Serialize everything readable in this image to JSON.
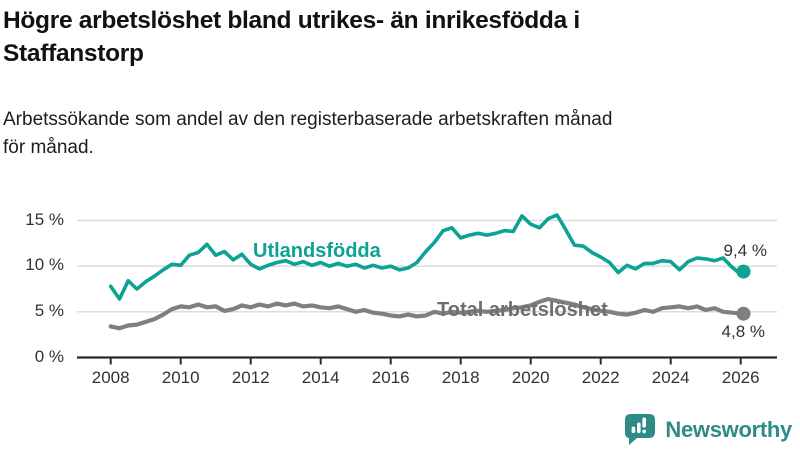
{
  "header": {
    "title": "Högre arbetslöshet bland utrikes- än inrikesfödda i\nStaffanstorp",
    "subtitle": "Arbetssökande som andel av den registerbaserade arbetskraften månad\nför månad."
  },
  "chart_data": {
    "type": "line",
    "title": "Högre arbetslöshet bland utrikes- än inrikesfödda i Staffanstorp",
    "subtitle": "Arbetssökande som andel av den registerbaserade arbetskraften månad för månad.",
    "unit": "%",
    "grid": "horizontal",
    "legend_position": "inline-labels-on-lines",
    "xlim": [
      2007.05,
      2027.05
    ],
    "ylim": [
      0,
      16
    ],
    "x_ticks": [
      {
        "value": 2008,
        "label": "2008"
      },
      {
        "value": 2010,
        "label": "2010"
      },
      {
        "value": 2012,
        "label": "2012"
      },
      {
        "value": 2014,
        "label": "2014"
      },
      {
        "value": 2016,
        "label": "2016"
      },
      {
        "value": 2018,
        "label": "2018"
      },
      {
        "value": 2020,
        "label": "2020"
      },
      {
        "value": 2022,
        "label": "2022"
      },
      {
        "value": 2024,
        "label": "2024"
      },
      {
        "value": 2026,
        "label": "2026"
      }
    ],
    "y_ticks": [
      {
        "value": 0,
        "label": "0 %"
      },
      {
        "value": 5,
        "label": "5 %"
      },
      {
        "value": 10,
        "label": "10 %"
      },
      {
        "value": 15,
        "label": "15 %"
      }
    ],
    "series": [
      {
        "name": "Utlandsfödda",
        "color": "#0ca294",
        "end_label": "9,4 %",
        "end_value": 9.4,
        "points": [
          [
            2008.0,
            7.8
          ],
          [
            2008.25,
            6.4
          ],
          [
            2008.5,
            8.4
          ],
          [
            2008.75,
            7.5
          ],
          [
            2009.0,
            8.3
          ],
          [
            2009.25,
            8.9
          ],
          [
            2009.5,
            9.6
          ],
          [
            2009.75,
            10.2
          ],
          [
            2010.0,
            10.1
          ],
          [
            2010.25,
            11.2
          ],
          [
            2010.5,
            11.5
          ],
          [
            2010.75,
            12.4
          ],
          [
            2011.0,
            11.2
          ],
          [
            2011.25,
            11.6
          ],
          [
            2011.5,
            10.7
          ],
          [
            2011.75,
            11.3
          ],
          [
            2012.0,
            10.2
          ],
          [
            2012.25,
            9.7
          ],
          [
            2012.5,
            10.1
          ],
          [
            2012.75,
            10.4
          ],
          [
            2013.0,
            10.6
          ],
          [
            2013.25,
            10.2
          ],
          [
            2013.5,
            10.5
          ],
          [
            2013.75,
            10.1
          ],
          [
            2014.0,
            10.4
          ],
          [
            2014.25,
            10.0
          ],
          [
            2014.5,
            10.3
          ],
          [
            2014.75,
            10.0
          ],
          [
            2015.0,
            10.2
          ],
          [
            2015.25,
            9.8
          ],
          [
            2015.5,
            10.1
          ],
          [
            2015.75,
            9.8
          ],
          [
            2016.0,
            10.0
          ],
          [
            2016.25,
            9.6
          ],
          [
            2016.5,
            9.8
          ],
          [
            2016.75,
            10.4
          ],
          [
            2017.0,
            11.6
          ],
          [
            2017.25,
            12.6
          ],
          [
            2017.5,
            13.9
          ],
          [
            2017.75,
            14.2
          ],
          [
            2018.0,
            13.1
          ],
          [
            2018.25,
            13.4
          ],
          [
            2018.5,
            13.6
          ],
          [
            2018.75,
            13.4
          ],
          [
            2019.0,
            13.6
          ],
          [
            2019.25,
            13.9
          ],
          [
            2019.5,
            13.8
          ],
          [
            2019.75,
            15.5
          ],
          [
            2020.0,
            14.6
          ],
          [
            2020.25,
            14.2
          ],
          [
            2020.5,
            15.2
          ],
          [
            2020.75,
            15.6
          ],
          [
            2021.0,
            14.0
          ],
          [
            2021.25,
            12.3
          ],
          [
            2021.5,
            12.2
          ],
          [
            2021.75,
            11.5
          ],
          [
            2022.0,
            11.0
          ],
          [
            2022.25,
            10.4
          ],
          [
            2022.5,
            9.3
          ],
          [
            2022.75,
            10.1
          ],
          [
            2023.0,
            9.7
          ],
          [
            2023.25,
            10.3
          ],
          [
            2023.5,
            10.3
          ],
          [
            2023.75,
            10.6
          ],
          [
            2024.0,
            10.5
          ],
          [
            2024.25,
            9.6
          ],
          [
            2024.5,
            10.5
          ],
          [
            2024.75,
            10.9
          ],
          [
            2025.0,
            10.8
          ],
          [
            2025.25,
            10.6
          ],
          [
            2025.5,
            10.9
          ],
          [
            2025.75,
            9.9
          ],
          [
            2026.0,
            9.1
          ],
          [
            2026.08,
            9.4
          ]
        ]
      },
      {
        "name": "Total arbetslöshet",
        "color": "#7f7f7f",
        "label_color": "#6f6f6f",
        "end_label": "4,8 %",
        "end_value": 4.8,
        "points": [
          [
            2008.0,
            3.4
          ],
          [
            2008.25,
            3.2
          ],
          [
            2008.5,
            3.5
          ],
          [
            2008.75,
            3.6
          ],
          [
            2009.0,
            3.9
          ],
          [
            2009.25,
            4.2
          ],
          [
            2009.5,
            4.7
          ],
          [
            2009.75,
            5.3
          ],
          [
            2010.0,
            5.6
          ],
          [
            2010.25,
            5.5
          ],
          [
            2010.5,
            5.8
          ],
          [
            2010.75,
            5.5
          ],
          [
            2011.0,
            5.6
          ],
          [
            2011.25,
            5.1
          ],
          [
            2011.5,
            5.3
          ],
          [
            2011.75,
            5.7
          ],
          [
            2012.0,
            5.5
          ],
          [
            2012.25,
            5.8
          ],
          [
            2012.5,
            5.6
          ],
          [
            2012.75,
            5.9
          ],
          [
            2013.0,
            5.7
          ],
          [
            2013.25,
            5.9
          ],
          [
            2013.5,
            5.6
          ],
          [
            2013.75,
            5.7
          ],
          [
            2014.0,
            5.5
          ],
          [
            2014.25,
            5.4
          ],
          [
            2014.5,
            5.6
          ],
          [
            2014.75,
            5.3
          ],
          [
            2015.0,
            5.0
          ],
          [
            2015.25,
            5.2
          ],
          [
            2015.5,
            4.9
          ],
          [
            2015.75,
            4.8
          ],
          [
            2016.0,
            4.6
          ],
          [
            2016.25,
            4.5
          ],
          [
            2016.5,
            4.7
          ],
          [
            2016.75,
            4.5
          ],
          [
            2017.0,
            4.6
          ],
          [
            2017.25,
            5.0
          ],
          [
            2017.5,
            4.8
          ],
          [
            2017.75,
            5.0
          ],
          [
            2018.0,
            4.9
          ],
          [
            2018.25,
            5.0
          ],
          [
            2018.5,
            5.1
          ],
          [
            2018.75,
            5.0
          ],
          [
            2019.0,
            5.1
          ],
          [
            2019.25,
            5.2
          ],
          [
            2019.5,
            5.4
          ],
          [
            2019.75,
            5.5
          ],
          [
            2020.0,
            5.7
          ],
          [
            2020.25,
            6.1
          ],
          [
            2020.5,
            6.4
          ],
          [
            2020.75,
            6.2
          ],
          [
            2021.0,
            6.0
          ],
          [
            2021.25,
            5.8
          ],
          [
            2021.5,
            5.5
          ],
          [
            2021.75,
            5.3
          ],
          [
            2022.0,
            5.1
          ],
          [
            2022.25,
            5.0
          ],
          [
            2022.5,
            4.8
          ],
          [
            2022.75,
            4.7
          ],
          [
            2023.0,
            4.9
          ],
          [
            2023.25,
            5.2
          ],
          [
            2023.5,
            5.0
          ],
          [
            2023.75,
            5.4
          ],
          [
            2024.0,
            5.5
          ],
          [
            2024.25,
            5.6
          ],
          [
            2024.5,
            5.4
          ],
          [
            2024.75,
            5.6
          ],
          [
            2025.0,
            5.2
          ],
          [
            2025.25,
            5.4
          ],
          [
            2025.5,
            5.0
          ],
          [
            2025.75,
            4.9
          ],
          [
            2026.0,
            4.8
          ],
          [
            2026.08,
            4.8
          ]
        ]
      }
    ]
  },
  "branding": {
    "brand": "Newsworthy",
    "brand_color": "#2f8b86"
  }
}
